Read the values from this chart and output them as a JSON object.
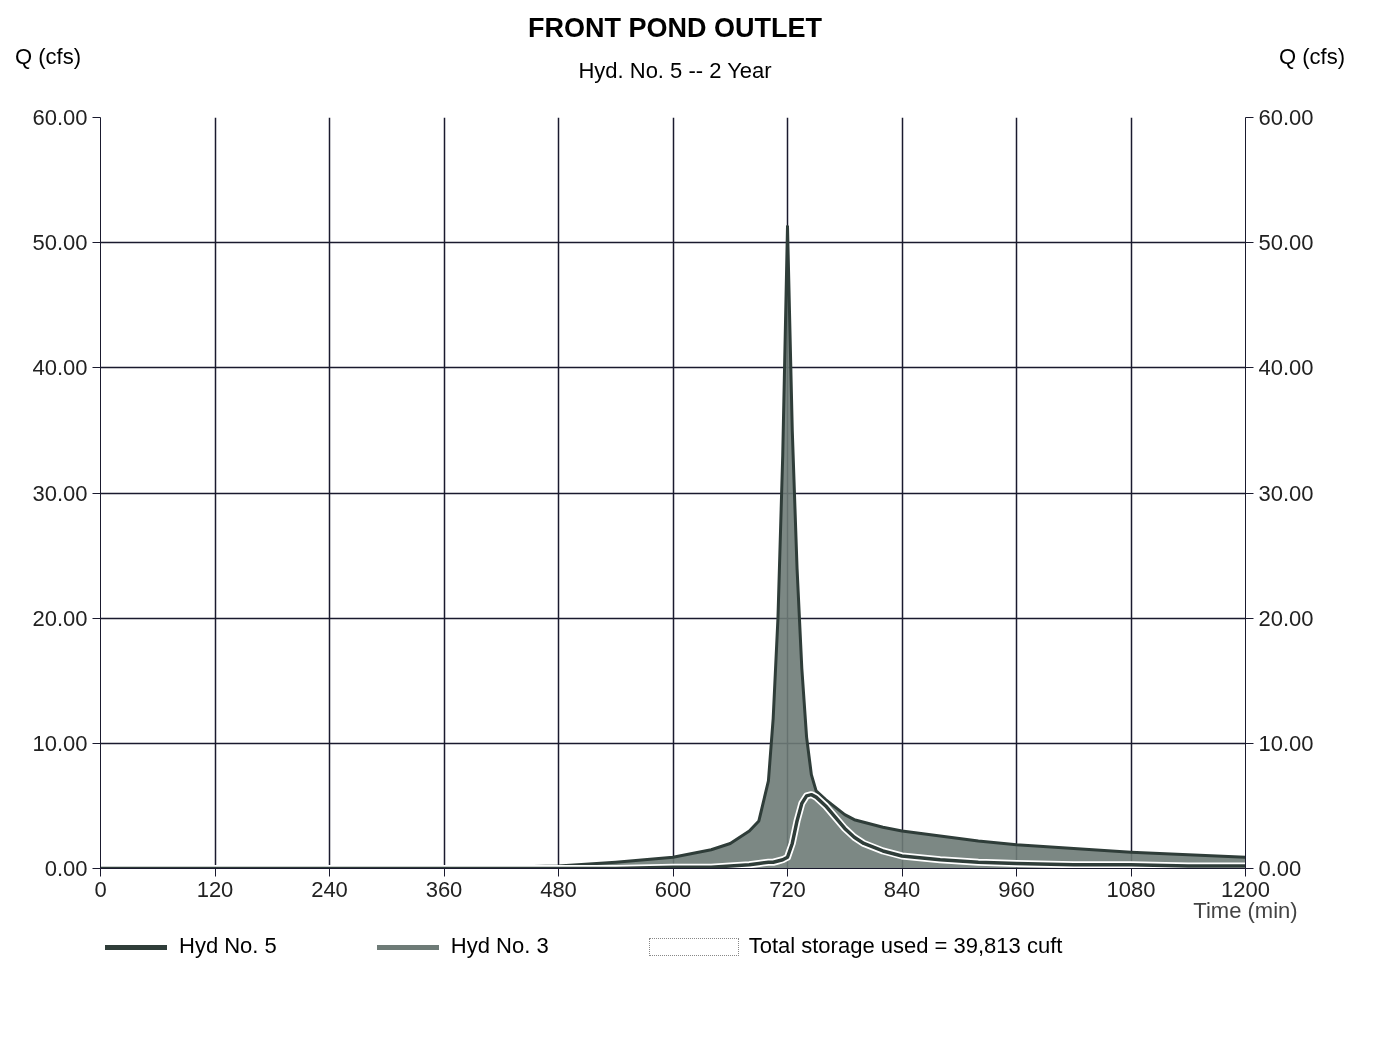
{
  "chart_data": {
    "type": "line",
    "title": "FRONT POND OUTLET",
    "subtitle": "Hyd. No. 5 -- 2 Year",
    "xlabel": "Time (min)",
    "ylabel": "Q (cfs)",
    "y2label": "Q (cfs)",
    "x": [
      0,
      120,
      240,
      360,
      420,
      480,
      540,
      600,
      640,
      660,
      680,
      690,
      700,
      705,
      710,
      715,
      720,
      725,
      730,
      735,
      740,
      745,
      750,
      760,
      770,
      780,
      790,
      800,
      820,
      840,
      880,
      920,
      960,
      1020,
      1080,
      1140,
      1200
    ],
    "series": [
      {
        "name": "Hyd No. 5",
        "color": "#2f3d39",
        "values": [
          0,
          0,
          0,
          0,
          0,
          0,
          0,
          0.1,
          0.1,
          0.2,
          0.3,
          0.4,
          0.5,
          0.5,
          0.6,
          0.7,
          0.9,
          2,
          3.8,
          5.2,
          5.8,
          5.9,
          5.7,
          5.0,
          4.1,
          3.2,
          2.5,
          2.0,
          1.4,
          1.0,
          0.7,
          0.5,
          0.4,
          0.3,
          0.3,
          0.2,
          0.2
        ]
      },
      {
        "name": "Hyd No. 3",
        "type": "area",
        "color": "#6e7b77",
        "values": [
          0,
          0,
          0,
          0.1,
          0.1,
          0.2,
          0.5,
          0.9,
          1.5,
          2.0,
          3.0,
          3.8,
          7,
          12,
          20,
          33,
          51.3,
          35,
          24,
          16,
          10.5,
          7.5,
          6.2,
          5.5,
          4.9,
          4.3,
          3.9,
          3.7,
          3.3,
          3.0,
          2.6,
          2.2,
          1.9,
          1.6,
          1.3,
          1.1,
          0.9
        ]
      }
    ],
    "xlim": [
      0,
      1200
    ],
    "xticks": [
      0,
      120,
      240,
      360,
      480,
      600,
      720,
      840,
      960,
      1080,
      1200
    ],
    "ylim": [
      0,
      60
    ],
    "yticks": [
      {
        "value": 0,
        "label": "0.00"
      },
      {
        "value": 10,
        "label": "10.00"
      },
      {
        "value": 20,
        "label": "20.00"
      },
      {
        "value": 30,
        "label": "30.00"
      },
      {
        "value": 40,
        "label": "40.00"
      },
      {
        "value": 50,
        "label": "50.00"
      },
      {
        "value": 60,
        "label": "60.00"
      }
    ],
    "y2lim": [
      0,
      60
    ],
    "y2ticks": [
      {
        "value": 0,
        "label": "0.00"
      },
      {
        "value": 10,
        "label": "10.00"
      },
      {
        "value": 20,
        "label": "20.00"
      },
      {
        "value": 30,
        "label": "30.00"
      },
      {
        "value": 40,
        "label": "40.00"
      },
      {
        "value": 50,
        "label": "50.00"
      },
      {
        "value": 60,
        "label": "60.00"
      }
    ],
    "annotations": [
      "Total storage used = 39,813 cuft"
    ],
    "grid": true,
    "legend": "bottom",
    "marker": "none",
    "line_style": "solid"
  }
}
